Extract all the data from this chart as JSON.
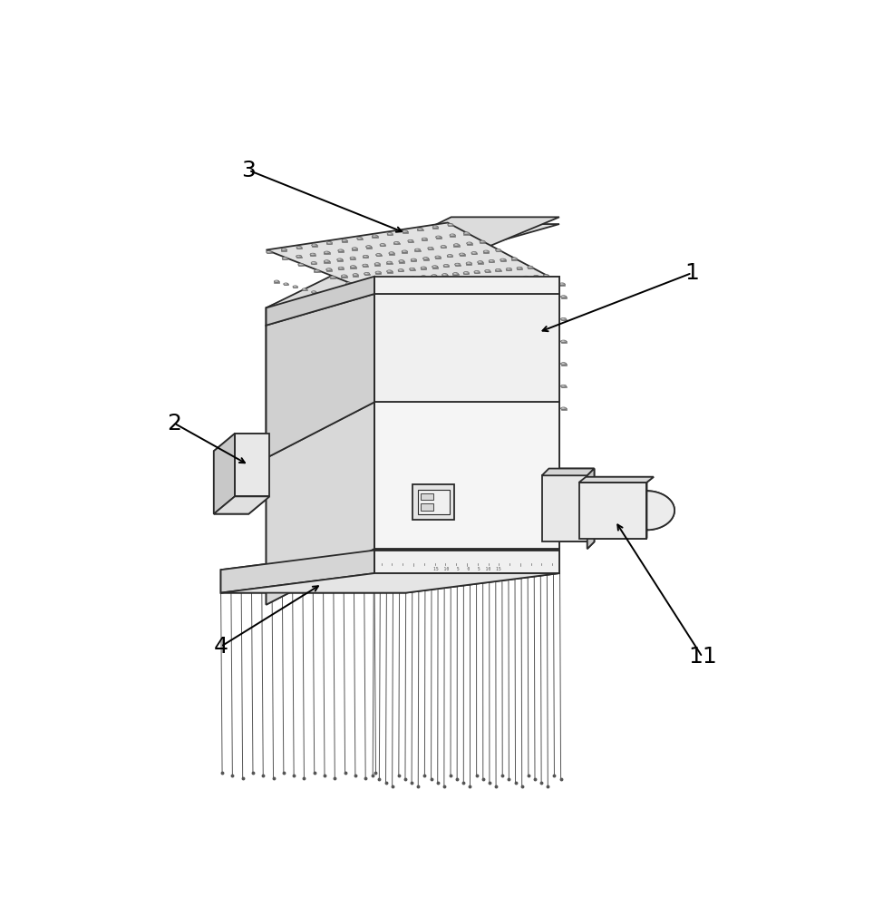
{
  "background_color": "#ffffff",
  "line_color": "#2a2a2a",
  "face_front": "#f5f5f5",
  "face_left": "#d8d8d8",
  "face_top": "#e8e8e8",
  "face_dark": "#c0c0c0",
  "face_mid": "#e0e0e0",
  "pin_color": "#888888",
  "pin_edge": "#555555",
  "needle_color": "#555555",
  "text_color": "#000000",
  "label_fontsize": 18,
  "arrow_lw": 1.4
}
